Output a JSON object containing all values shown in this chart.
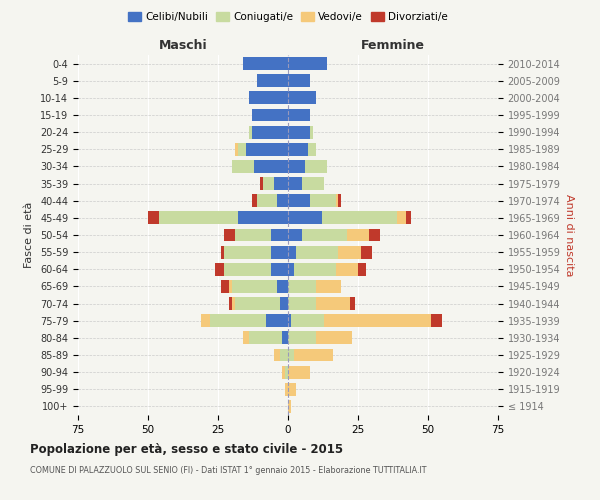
{
  "age_groups": [
    "100+",
    "95-99",
    "90-94",
    "85-89",
    "80-84",
    "75-79",
    "70-74",
    "65-69",
    "60-64",
    "55-59",
    "50-54",
    "45-49",
    "40-44",
    "35-39",
    "30-34",
    "25-29",
    "20-24",
    "15-19",
    "10-14",
    "5-9",
    "0-4"
  ],
  "birth_years": [
    "≤ 1914",
    "1915-1919",
    "1920-1924",
    "1925-1929",
    "1930-1934",
    "1935-1939",
    "1940-1944",
    "1945-1949",
    "1950-1954",
    "1955-1959",
    "1960-1964",
    "1965-1969",
    "1970-1974",
    "1975-1979",
    "1980-1984",
    "1985-1989",
    "1990-1994",
    "1995-1999",
    "2000-2004",
    "2005-2009",
    "2010-2014"
  ],
  "maschi": {
    "celibi": [
      0,
      0,
      0,
      0,
      2,
      8,
      3,
      4,
      6,
      6,
      6,
      18,
      4,
      5,
      12,
      15,
      13,
      13,
      14,
      11,
      16
    ],
    "coniugati": [
      0,
      0,
      1,
      3,
      12,
      20,
      16,
      16,
      17,
      17,
      13,
      28,
      7,
      4,
      8,
      3,
      1,
      0,
      0,
      0,
      0
    ],
    "vedovi": [
      0,
      1,
      1,
      2,
      2,
      3,
      1,
      1,
      0,
      0,
      0,
      0,
      0,
      0,
      0,
      1,
      0,
      0,
      0,
      0,
      0
    ],
    "divorziati": [
      0,
      0,
      0,
      0,
      0,
      0,
      1,
      3,
      3,
      1,
      4,
      4,
      2,
      1,
      0,
      0,
      0,
      0,
      0,
      0,
      0
    ]
  },
  "femmine": {
    "nubili": [
      0,
      0,
      0,
      0,
      0,
      1,
      0,
      0,
      2,
      3,
      5,
      12,
      8,
      5,
      6,
      7,
      8,
      8,
      10,
      8,
      14
    ],
    "coniugate": [
      0,
      0,
      0,
      2,
      10,
      12,
      10,
      10,
      15,
      15,
      16,
      27,
      9,
      8,
      8,
      3,
      1,
      0,
      0,
      0,
      0
    ],
    "vedove": [
      1,
      3,
      8,
      14,
      13,
      38,
      12,
      9,
      8,
      8,
      8,
      3,
      1,
      0,
      0,
      0,
      0,
      0,
      0,
      0,
      0
    ],
    "divorziate": [
      0,
      0,
      0,
      0,
      0,
      4,
      2,
      0,
      3,
      4,
      4,
      2,
      1,
      0,
      0,
      0,
      0,
      0,
      0,
      0,
      0
    ]
  },
  "colors": {
    "celibi": "#4472c4",
    "coniugati": "#c8dba0",
    "vedovi": "#f5c97a",
    "divorziati": "#c0392b"
  },
  "xlim": 75,
  "title": "Popolazione per età, sesso e stato civile - 2015",
  "subtitle": "COMUNE DI PALAZZUOLO SUL SENIO (FI) - Dati ISTAT 1° gennaio 2015 - Elaborazione TUTTITALIA.IT",
  "legend_labels": [
    "Celibi/Nubili",
    "Coniugati/e",
    "Vedovi/e",
    "Divorziati/e"
  ],
  "xlabel_left": "Maschi",
  "xlabel_right": "Femmine",
  "ylabel_left": "Fasce di età",
  "ylabel_right": "Anni di nascita",
  "background_color": "#f5f5f0"
}
